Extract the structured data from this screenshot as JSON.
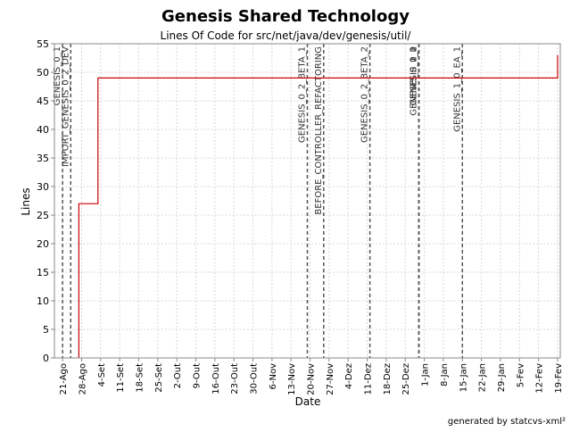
{
  "chart_data": {
    "type": "line",
    "title": "Genesis Shared Technology",
    "subtitle": "Lines Of Code for src/net/java/dev/genesis/util/",
    "xlabel": "Date",
    "ylabel": "Lines",
    "footer": "generated by statcvs-xml²",
    "ylim": [
      0,
      55
    ],
    "y_ticks": [
      0,
      5,
      10,
      15,
      20,
      25,
      30,
      35,
      40,
      45,
      50,
      55
    ],
    "x_range": [
      "2004-08-18",
      "2005-02-20"
    ],
    "x_ticks": [
      {
        "date": "2004-08-21",
        "label": "21-Ago"
      },
      {
        "date": "2004-08-28",
        "label": "28-Ago"
      },
      {
        "date": "2004-09-04",
        "label": "4-Set"
      },
      {
        "date": "2004-09-11",
        "label": "11-Set"
      },
      {
        "date": "2004-09-18",
        "label": "18-Set"
      },
      {
        "date": "2004-09-25",
        "label": "25-Set"
      },
      {
        "date": "2004-10-02",
        "label": "2-Out"
      },
      {
        "date": "2004-10-09",
        "label": "9-Out"
      },
      {
        "date": "2004-10-16",
        "label": "16-Out"
      },
      {
        "date": "2004-10-23",
        "label": "23-Out"
      },
      {
        "date": "2004-10-30",
        "label": "30-Out"
      },
      {
        "date": "2004-11-06",
        "label": "6-Nov"
      },
      {
        "date": "2004-11-13",
        "label": "13-Nov"
      },
      {
        "date": "2004-11-20",
        "label": "20-Nov"
      },
      {
        "date": "2004-11-27",
        "label": "27-Nov"
      },
      {
        "date": "2004-12-04",
        "label": "4-Dez"
      },
      {
        "date": "2004-12-11",
        "label": "11-Dez"
      },
      {
        "date": "2004-12-18",
        "label": "18-Dez"
      },
      {
        "date": "2004-12-25",
        "label": "25-Dez"
      },
      {
        "date": "2005-01-01",
        "label": "1-Jan"
      },
      {
        "date": "2005-01-08",
        "label": "8-Jan"
      },
      {
        "date": "2005-01-15",
        "label": "15-Jan"
      },
      {
        "date": "2005-01-22",
        "label": "22-Jan"
      },
      {
        "date": "2005-01-29",
        "label": "29-Jan"
      },
      {
        "date": "2005-02-05",
        "label": "5-Fev"
      },
      {
        "date": "2005-02-12",
        "label": "12-Fev"
      },
      {
        "date": "2005-02-19",
        "label": "19-Fev"
      }
    ],
    "grid": true,
    "series": [
      {
        "color": "#cc0000",
        "points": [
          {
            "x": "2004-08-27",
            "y": 0
          },
          {
            "x": "2004-08-27",
            "y": 27
          },
          {
            "x": "2004-09-03",
            "y": 27
          },
          {
            "x": "2004-09-03",
            "y": 49
          },
          {
            "x": "2005-02-19",
            "y": 49
          },
          {
            "x": "2005-02-19",
            "y": 53
          }
        ]
      }
    ],
    "markers": [
      {
        "date": "2004-08-21",
        "label": "GENESIS_0_1"
      },
      {
        "date": "2004-08-24",
        "label": "IMPORT_GENESIS_0_2_DEV"
      },
      {
        "date": "2004-11-19",
        "label": "GENESIS_0_2_BETA_1"
      },
      {
        "date": "2004-11-25",
        "label": "BEFORE_CONTROLLER_REFACTORING"
      },
      {
        "date": "2004-12-12",
        "label": "GENESIS_0_2_BETA_2"
      },
      {
        "date": "2004-12-30",
        "label": "GENESIS_0_2"
      },
      {
        "date": "2004-12-30",
        "label": "GENESIS_0_2_1"
      },
      {
        "date": "2004-12-30",
        "label": "GENESIS_1_0"
      },
      {
        "date": "2005-01-15",
        "label": "GENESIS_1_0_EA_1"
      }
    ],
    "colors": {
      "line": "#cc0000",
      "grid": "#d8d8d8",
      "marker": "#555555"
    }
  }
}
